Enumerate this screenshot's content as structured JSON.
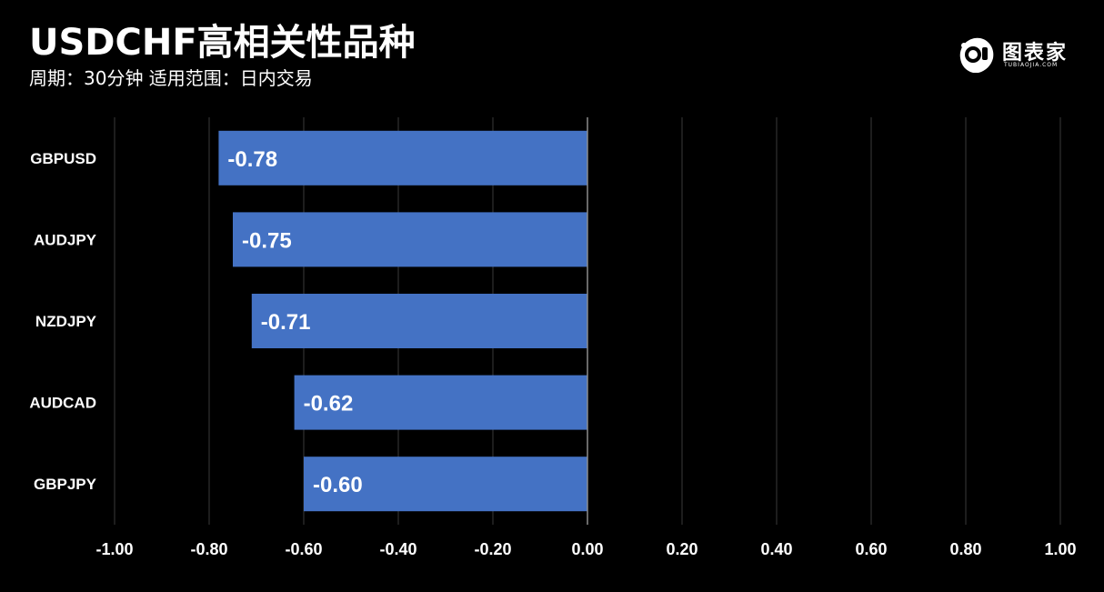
{
  "header": {
    "title": "USDCHF高相关性品种",
    "subtitle": "周期：30分钟  适用范围：日内交易"
  },
  "logo": {
    "text": "图表家",
    "subtext": "TUBIAOJIA.COM",
    "icon": "robot-head-icon"
  },
  "colors": {
    "background": "#000000",
    "bar": "#4472c4",
    "grid": "#3a3a3a",
    "zero_line": "#8c8c8c",
    "text": "#ffffff"
  },
  "chart_data": {
    "type": "bar",
    "orientation": "horizontal",
    "categories": [
      "GBPUSD",
      "AUDJPY",
      "NZDJPY",
      "AUDCAD",
      "GBPJPY"
    ],
    "values": [
      -0.78,
      -0.75,
      -0.71,
      -0.62,
      -0.6
    ],
    "data_labels": [
      "-0.78",
      "-0.75",
      "-0.71",
      "-0.62",
      "-0.60"
    ],
    "xlim": [
      -1.0,
      1.0
    ],
    "xticks": [
      "-1.00",
      "-0.80",
      "-0.60",
      "-0.40",
      "-0.20",
      "0.00",
      "0.20",
      "0.40",
      "0.60",
      "0.80",
      "1.00"
    ],
    "xtick_values": [
      -1.0,
      -0.8,
      -0.6,
      -0.4,
      -0.2,
      0.0,
      0.2,
      0.4,
      0.6,
      0.8,
      1.0
    ],
    "grid": true,
    "legend": "none"
  }
}
